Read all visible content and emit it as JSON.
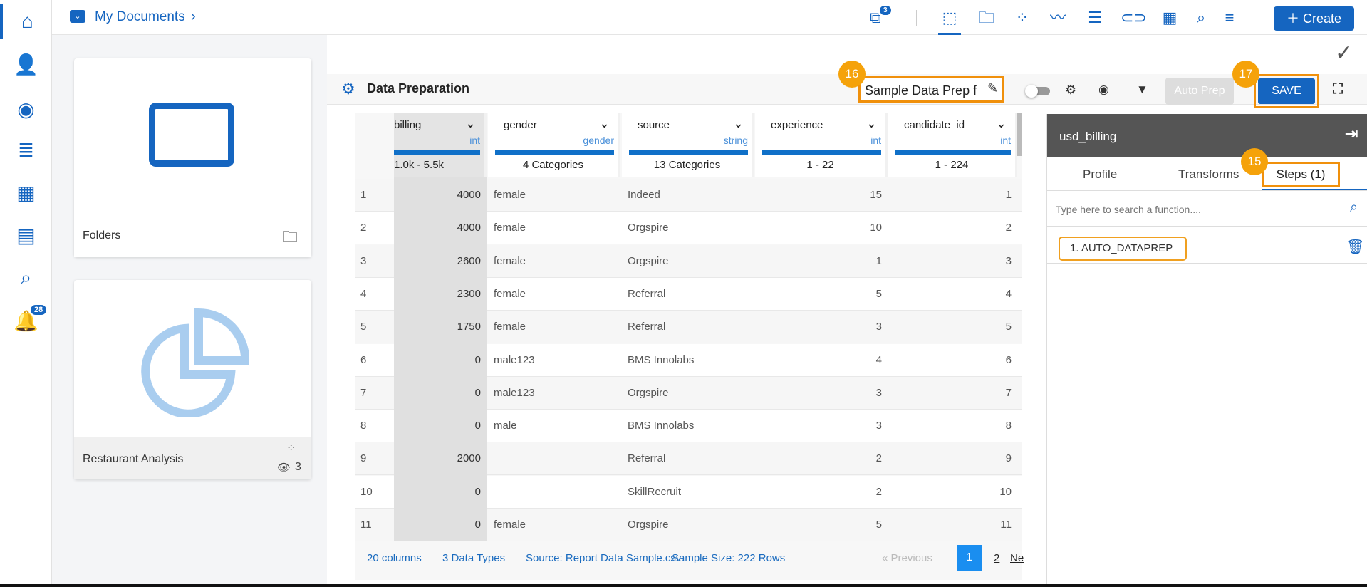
{
  "topbar": {
    "breadcrumb": "My Documents",
    "share_badge": "3",
    "create_label": "Create"
  },
  "sidebar": {
    "notification_badge": "28"
  },
  "cards": [
    {
      "label": "Folders"
    },
    {
      "label": "Restaurant Analysis",
      "views": "3"
    }
  ],
  "prep": {
    "title": "Data Preparation",
    "name_value": "Sample Data Prep f",
    "auto_prep": "Auto Prep",
    "save": "SAVE"
  },
  "callouts": [
    "16",
    "17",
    "15"
  ],
  "columns": [
    {
      "name": "billing",
      "type": "int",
      "summary": "1.0k - 5.5k"
    },
    {
      "name": "gender",
      "type": "gender",
      "summary": "4 Categories"
    },
    {
      "name": "source",
      "type": "string",
      "summary": "13 Categories"
    },
    {
      "name": "experience",
      "type": "int",
      "summary": "1 - 22"
    },
    {
      "name": "candidate_id",
      "type": "int",
      "summary": "1 - 224"
    }
  ],
  "rows": [
    [
      "1",
      "4000",
      "female",
      "Indeed",
      "15",
      "1"
    ],
    [
      "2",
      "4000",
      "female",
      "Orgspire",
      "10",
      "2"
    ],
    [
      "3",
      "2600",
      "female",
      "Orgspire",
      "1",
      "3"
    ],
    [
      "4",
      "2300",
      "female",
      "Referral",
      "5",
      "4"
    ],
    [
      "5",
      "1750",
      "female",
      "Referral",
      "3",
      "5"
    ],
    [
      "6",
      "0",
      "male123",
      "BMS Innolabs",
      "4",
      "6"
    ],
    [
      "7",
      "0",
      "male123",
      "Orgspire",
      "3",
      "7"
    ],
    [
      "8",
      "0",
      "male",
      "BMS Innolabs",
      "3",
      "8"
    ],
    [
      "9",
      "2000",
      "",
      "Referral",
      "2",
      "9"
    ],
    [
      "10",
      "0",
      "",
      "SkillRecruit",
      "2",
      "10"
    ],
    [
      "11",
      "0",
      "female",
      "Orgspire",
      "5",
      "11"
    ]
  ],
  "footer": {
    "columns": "20 columns",
    "types": "3 Data Types",
    "source": "Source: Report Data Sample.csv",
    "sample": "Sample Size: 222 Rows",
    "previous": "« Previous",
    "page1": "1",
    "page2": "2",
    "next": "Ne"
  },
  "right_panel": {
    "title": "usd_billing",
    "tabs": [
      "Profile",
      "Transforms",
      "Steps (1)"
    ],
    "search_placeholder": "Type here to search a function....",
    "step": "1. AUTO_DATAPREP"
  }
}
